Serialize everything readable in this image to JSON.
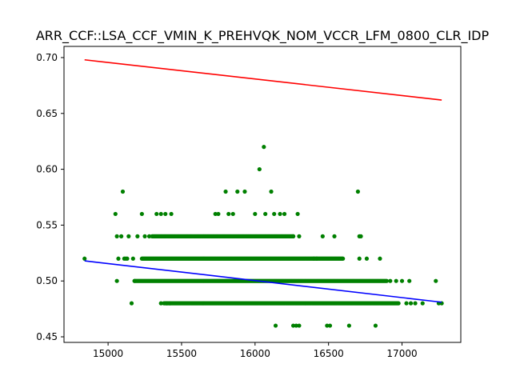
{
  "chart_data": {
    "type": "scatter",
    "title": "ARR_CCF::LSA_CCF_VMIN_K_PREHVQK_NOM_VCCR_LFM_0800_CLR_IDP",
    "xlabel": "",
    "ylabel": "",
    "xlim": [
      14700,
      17400
    ],
    "ylim": [
      0.445,
      0.71
    ],
    "x_ticks": [
      15000,
      15500,
      16000,
      16500,
      17000
    ],
    "y_ticks": [
      0.45,
      0.5,
      0.55,
      0.6,
      0.65,
      0.7
    ],
    "x_tick_labels": [
      "15000",
      "15500",
      "16000",
      "16500",
      "17000"
    ],
    "y_tick_labels": [
      "0.45",
      "0.50",
      "0.55",
      "0.60",
      "0.65",
      "0.70"
    ],
    "grid": false,
    "series": [
      {
        "kind": "scatter",
        "color": "#008000",
        "points": [
          [
            14840,
            0.52
          ],
          [
            15050,
            0.56
          ],
          [
            15060,
            0.54
          ],
          [
            15070,
            0.52
          ],
          [
            15060,
            0.5
          ],
          [
            15090,
            0.54
          ],
          [
            15100,
            0.58
          ],
          [
            15110,
            0.52
          ],
          [
            15120,
            0.52
          ],
          [
            15130,
            0.52
          ],
          [
            15140,
            0.54
          ],
          [
            15160,
            0.48
          ],
          [
            15170,
            0.52
          ],
          [
            15180,
            0.5
          ],
          [
            15200,
            0.54
          ],
          [
            15230,
            0.56
          ],
          [
            15250,
            0.54
          ],
          [
            15280,
            0.54
          ],
          [
            15330,
            0.56
          ],
          [
            15360,
            0.56
          ],
          [
            15390,
            0.56
          ],
          [
            15430,
            0.56
          ],
          [
            15360,
            0.48
          ],
          [
            15400,
            0.48
          ],
          [
            15420,
            0.48
          ],
          [
            15730,
            0.56
          ],
          [
            15750,
            0.56
          ],
          [
            15800,
            0.58
          ],
          [
            15820,
            0.56
          ],
          [
            15850,
            0.56
          ],
          [
            15880,
            0.58
          ],
          [
            15930,
            0.58
          ],
          [
            16000,
            0.56
          ],
          [
            16030,
            0.6
          ],
          [
            16060,
            0.62
          ],
          [
            16070,
            0.56
          ],
          [
            16110,
            0.58
          ],
          [
            16130,
            0.56
          ],
          [
            16170,
            0.56
          ],
          [
            16200,
            0.56
          ],
          [
            16290,
            0.56
          ],
          [
            16260,
            0.46
          ],
          [
            16280,
            0.46
          ],
          [
            16140,
            0.46
          ],
          [
            16300,
            0.46
          ],
          [
            16490,
            0.46
          ],
          [
            16510,
            0.46
          ],
          [
            16640,
            0.46
          ],
          [
            16820,
            0.46
          ],
          [
            16700,
            0.58
          ],
          [
            16710,
            0.54
          ],
          [
            16720,
            0.54
          ],
          [
            16710,
            0.52
          ],
          [
            16760,
            0.52
          ],
          [
            16850,
            0.52
          ],
          [
            16540,
            0.54
          ],
          [
            16460,
            0.54
          ],
          [
            16260,
            0.54
          ],
          [
            16300,
            0.54
          ],
          [
            16400,
            0.52
          ],
          [
            16420,
            0.52
          ],
          [
            16920,
            0.5
          ],
          [
            16960,
            0.5
          ],
          [
            17000,
            0.5
          ],
          [
            17050,
            0.5
          ],
          [
            17230,
            0.5
          ],
          [
            17030,
            0.48
          ],
          [
            17060,
            0.48
          ],
          [
            17090,
            0.48
          ],
          [
            17140,
            0.48
          ],
          [
            17250,
            0.48
          ],
          [
            17270,
            0.48
          ]
        ],
        "bands": [
          {
            "y": 0.54,
            "from": 15300,
            "to": 16260
          },
          {
            "y": 0.52,
            "from": 15230,
            "to": 16600
          },
          {
            "y": 0.5,
            "from": 15180,
            "to": 16900
          },
          {
            "y": 0.48,
            "from": 15380,
            "to": 16980
          }
        ]
      },
      {
        "kind": "line",
        "color": "#ff0000",
        "points": [
          [
            14840,
            0.698
          ],
          [
            17270,
            0.662
          ]
        ]
      },
      {
        "kind": "line",
        "color": "#0000ff",
        "points": [
          [
            14840,
            0.518
          ],
          [
            17270,
            0.481
          ]
        ]
      }
    ]
  }
}
